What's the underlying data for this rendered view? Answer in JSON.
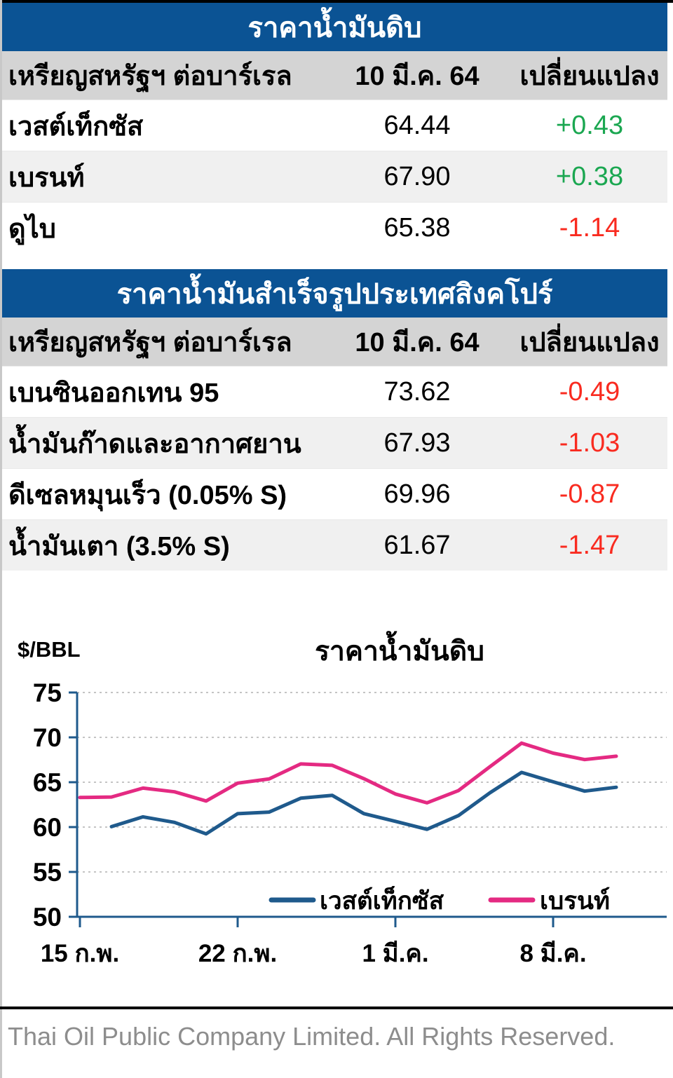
{
  "page": {
    "footer": "Thai Oil Public Company Limited. All Rights Reserved."
  },
  "colors": {
    "header_bg": "#0B5394",
    "subheader_bg": "#D4D4D4",
    "row_alt_bg": "#F0F0F0",
    "positive": "#1BA751",
    "negative": "#F92B20",
    "wti_line": "#1F5A8C",
    "brent_line": "#E42A82",
    "axis": "#1F5A8C",
    "grid": "#C4C4C4",
    "footer_text": "#8D8D8D",
    "top_border": "#000000",
    "left_border": "#C8C8C8"
  },
  "tables": [
    {
      "title": "ราคาน้ำมันดิบ",
      "header": {
        "unit": "เหรียญสหรัฐฯ ต่อบาร์เรล",
        "date": "10 มี.ค. 64",
        "change": "เปลี่ยนแปลง"
      },
      "rows": [
        {
          "label": "เวสต์เท็กซัส",
          "value": "64.44",
          "change": "+0.43",
          "direction": "up"
        },
        {
          "label": "เบรนท์",
          "value": "67.90",
          "change": "+0.38",
          "direction": "up"
        },
        {
          "label": "ดูไบ",
          "value": "65.38",
          "change": "-1.14",
          "direction": "down"
        }
      ]
    },
    {
      "title": "ราคาน้ำมันสำเร็จรูปประเทศสิงคโปร์",
      "header": {
        "unit": "เหรียญสหรัฐฯ ต่อบาร์เรล",
        "date": "10 มี.ค. 64",
        "change": "เปลี่ยนแปลง"
      },
      "rows": [
        {
          "label": "เบนซินออกเทน 95",
          "value": "73.62",
          "change": "-0.49",
          "direction": "down"
        },
        {
          "label": "น้ำมันก๊าดและอากาศยาน",
          "value": "67.93",
          "change": "-1.03",
          "direction": "down"
        },
        {
          "label": "ดีเซลหมุนเร็ว (0.05% S)",
          "value": "69.96",
          "change": "-0.87",
          "direction": "down"
        },
        {
          "label": "น้ำมันเตา (3.5% S)",
          "value": "61.67",
          "change": "-1.47",
          "direction": "down"
        }
      ]
    }
  ],
  "chart_data": {
    "type": "line",
    "title": "ราคาน้ำมันดิบ",
    "ylabel": "$/BBL",
    "ylim": [
      50,
      75
    ],
    "ytick_step": 5,
    "grid": true,
    "legend_position": "bottom-inside",
    "x": [
      "15 ก.พ.",
      "16 ก.พ.",
      "17 ก.พ.",
      "18 ก.พ.",
      "19 ก.พ.",
      "22 ก.พ.",
      "23 ก.พ.",
      "24 ก.พ.",
      "25 ก.พ.",
      "26 ก.พ.",
      "1 มี.ค.",
      "2 มี.ค.",
      "3 มี.ค.",
      "4 มี.ค.",
      "5 มี.ค.",
      "8 มี.ค.",
      "9 มี.ค.",
      "10 มี.ค."
    ],
    "x_tick_labels": [
      "15 ก.พ.",
      "22 ก.พ.",
      "1 มี.ค.",
      "8 มี.ค."
    ],
    "x_tick_indices": [
      0,
      5,
      10,
      15
    ],
    "series": [
      {
        "name": "เวสต์เท็กซัส",
        "color": "#1F5A8C",
        "values": [
          null,
          60.05,
          61.14,
          60.52,
          59.24,
          61.49,
          61.67,
          63.22,
          63.53,
          61.5,
          60.64,
          59.75,
          61.28,
          63.83,
          66.09,
          65.05,
          64.01,
          64.44
        ]
      },
      {
        "name": "เบรนท์",
        "color": "#E42A82",
        "values": [
          63.3,
          63.35,
          64.34,
          63.93,
          62.91,
          64.9,
          65.37,
          67.04,
          66.88,
          65.4,
          63.69,
          62.7,
          64.07,
          66.74,
          69.36,
          68.24,
          67.52,
          67.9
        ]
      }
    ]
  }
}
